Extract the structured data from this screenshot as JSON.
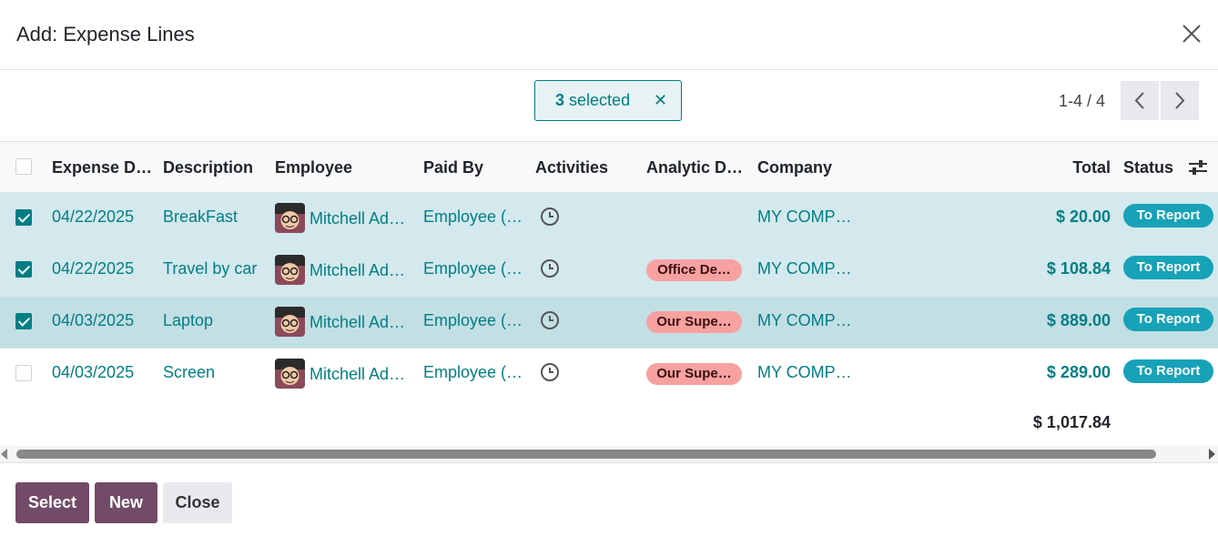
{
  "header": {
    "title": "Add: Expense Lines"
  },
  "selection": {
    "count": 3,
    "label": "selected"
  },
  "pager": "1-4 / 4",
  "table": {
    "columns": [
      "Expense D…",
      "Description",
      "Employee",
      "Paid By",
      "Activities",
      "Analytic D…",
      "Company",
      "Total",
      "Status"
    ],
    "rows": [
      {
        "selected": true,
        "date": "04/22/2025",
        "description": "BreakFast",
        "employee": "Mitchell Ad…",
        "paid_by": "Employee (…",
        "company": "MY COMP…",
        "total": "$ 20.00",
        "status": "To Report"
      },
      {
        "selected": true,
        "date": "04/22/2025",
        "description": "Travel by car",
        "employee": "Mitchell Ad…",
        "paid_by": "Employee (…",
        "analytic": "Office De…",
        "company": "MY COMP…",
        "total": "$ 108.84",
        "status": "To Report"
      },
      {
        "selected": true,
        "date": "04/03/2025",
        "description": "Laptop",
        "employee": "Mitchell Ad…",
        "paid_by": "Employee (…",
        "analytic": "Our Supe…",
        "company": "MY COMP…",
        "total": "$ 889.00",
        "status": "To Report"
      },
      {
        "selected": false,
        "date": "04/03/2025",
        "description": "Screen",
        "employee": "Mitchell Ad…",
        "paid_by": "Employee (…",
        "analytic": "Our Supe…",
        "company": "MY COMP…",
        "total": "$ 289.00",
        "status": "To Report"
      }
    ],
    "footer_total": "$ 1,017.84"
  },
  "buttons": [
    "Select",
    "New",
    "Close"
  ]
}
